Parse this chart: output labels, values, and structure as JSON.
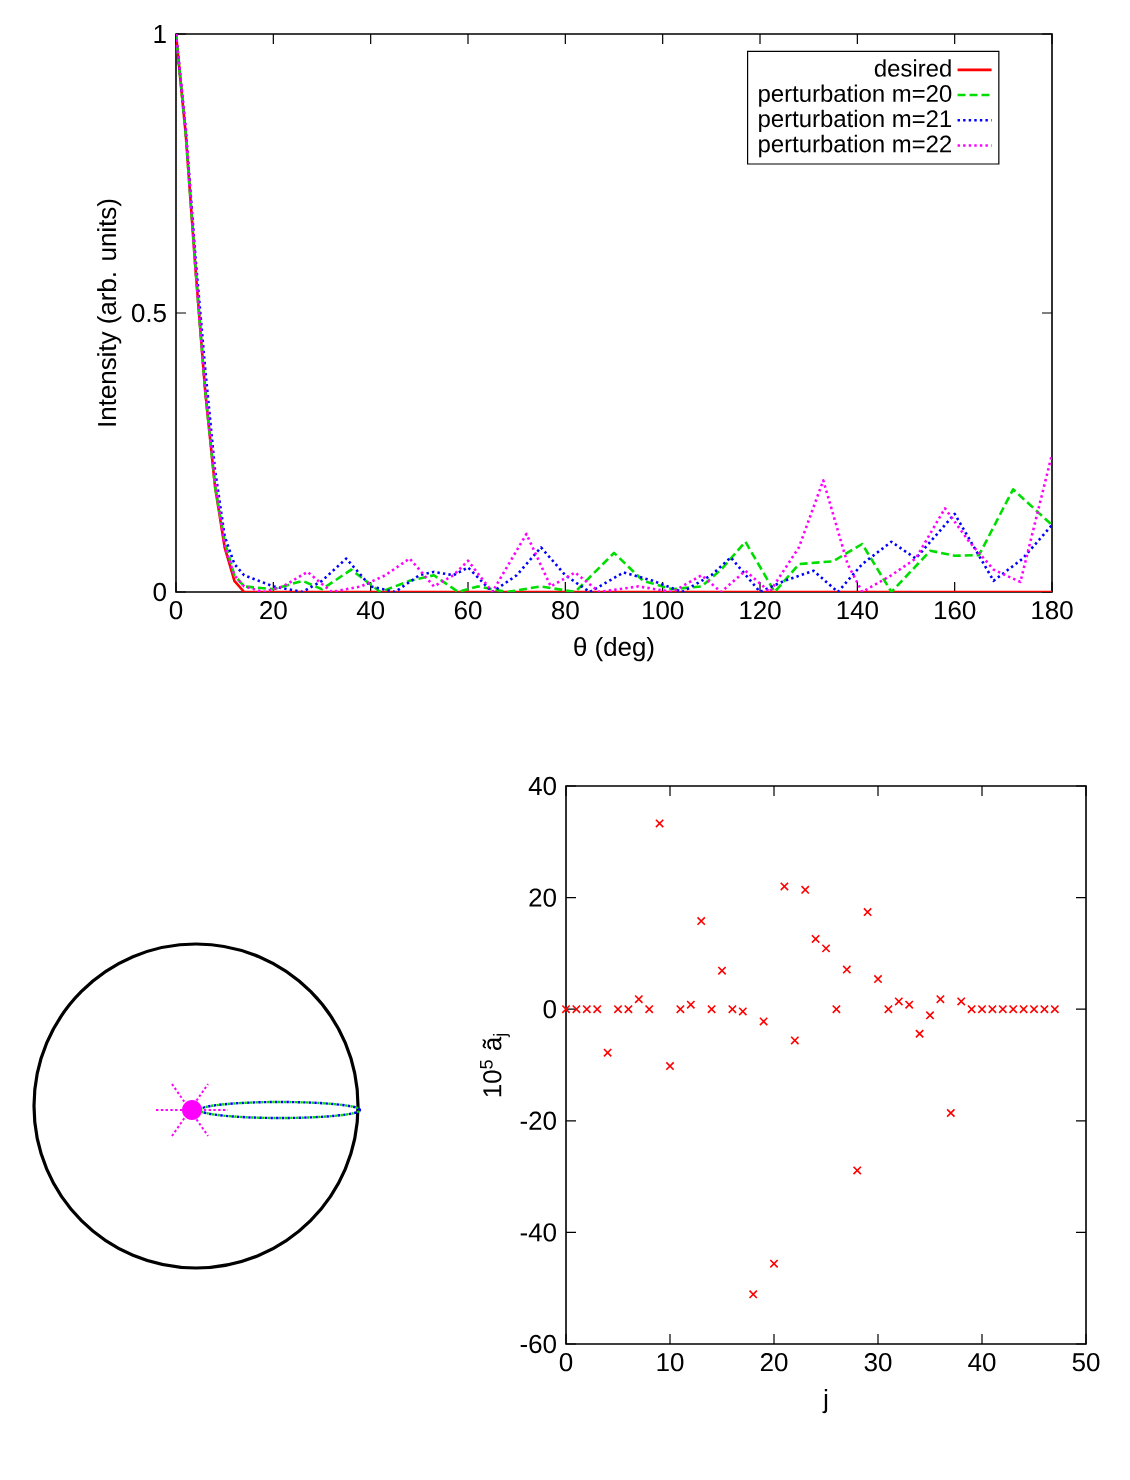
{
  "chart_data": [
    {
      "type": "line",
      "xlabel": "θ (deg)",
      "ylabel": "Intensity (arb. units)",
      "xlim": [
        0,
        180
      ],
      "ylim": [
        0,
        1
      ],
      "xticks": [
        0,
        20,
        40,
        60,
        80,
        100,
        120,
        140,
        160,
        180
      ],
      "yticks": [
        0,
        0.5,
        1
      ],
      "legend": "top right",
      "marker": "none",
      "series": [
        {
          "name": "desired",
          "color": "#ff0000",
          "line_style": "solid",
          "x": [
            0,
            2,
            4,
            6,
            8,
            10,
            12,
            14,
            180
          ],
          "values": [
            1,
            0.82,
            0.58,
            0.36,
            0.19,
            0.08,
            0.02,
            0,
            0
          ]
        },
        {
          "name": "perturbation m=20",
          "color": "#00dd00",
          "line_style": "dashed",
          "x": [
            0,
            2,
            4,
            6,
            8,
            10,
            12,
            14,
            20,
            26,
            30,
            36,
            42,
            48,
            53,
            58,
            62,
            68,
            75,
            82,
            90,
            96,
            102,
            108,
            112,
            117,
            123,
            128,
            135,
            141,
            147,
            155,
            160,
            165,
            172,
            180
          ],
          "values": [
            1,
            0.82,
            0.58,
            0.36,
            0.19,
            0.09,
            0.03,
            0.01,
            0.005,
            0.02,
            0.005,
            0.04,
            0,
            0.02,
            0.03,
            0,
            0.01,
            0,
            0.01,
            0,
            0.07,
            0.02,
            0.005,
            0.01,
            0.04,
            0.09,
            0,
            0.05,
            0.055,
            0.086,
            0,
            0.074,
            0.065,
            0.066,
            0.184,
            0.12
          ]
        },
        {
          "name": "perturbation m=21",
          "color": "#0000ff",
          "line_style": "dotted",
          "x": [
            0,
            2,
            4,
            6,
            8,
            10,
            12,
            14,
            20,
            26,
            30,
            35,
            40,
            45,
            50,
            53,
            57,
            60,
            65,
            70,
            75,
            80,
            85,
            92,
            98,
            104,
            110,
            114,
            120,
            125,
            131,
            136,
            141,
            147,
            152,
            160,
            168,
            174,
            180
          ],
          "values": [
            1,
            0.83,
            0.6,
            0.4,
            0.22,
            0.1,
            0.05,
            0.03,
            0.01,
            0,
            0.02,
            0.06,
            0.01,
            0,
            0.03,
            0.036,
            0.03,
            0.044,
            0,
            0.03,
            0.08,
            0.03,
            0,
            0.035,
            0.02,
            0,
            0.03,
            0.062,
            0,
            0.02,
            0.038,
            0,
            0.05,
            0.09,
            0.06,
            0.14,
            0.02,
            0.06,
            0.12
          ]
        },
        {
          "name": "perturbation m=22",
          "color": "#ff00ff",
          "line_style": "dotted",
          "x": [
            0,
            2,
            4,
            6,
            8,
            10,
            12,
            14,
            18,
            22,
            27,
            32,
            38,
            43,
            48,
            53,
            57,
            60,
            65,
            72,
            77,
            82,
            87,
            95,
            102,
            108,
            112,
            117,
            122,
            128,
            133,
            138,
            141,
            147,
            152,
            158,
            163,
            168,
            173.5,
            180
          ],
          "values": [
            1,
            0.83,
            0.58,
            0.36,
            0.2,
            0.08,
            0.03,
            0.01,
            0,
            0.01,
            0.036,
            0,
            0.01,
            0.03,
            0.06,
            0.01,
            0.03,
            0.056,
            0,
            0.104,
            0.01,
            0.035,
            0,
            0.01,
            0,
            0.03,
            0,
            0.038,
            0,
            0.08,
            0.2,
            0.05,
            0,
            0.03,
            0.06,
            0.15,
            0.09,
            0.04,
            0.018,
            0.247
          ]
        }
      ]
    },
    {
      "type": "scatter",
      "xlabel": "j",
      "ylabel": "10$^{5}$ ã$_{j}$",
      "xlim": [
        0,
        50
      ],
      "ylim": [
        -60,
        40
      ],
      "xticks": [
        0,
        10,
        20,
        30,
        40,
        50
      ],
      "yticks": [
        -60,
        -40,
        -20,
        0,
        20,
        40
      ],
      "marker": "cross",
      "color": "#ff0000",
      "x": [
        0,
        1,
        2,
        3,
        4,
        5,
        6,
        7,
        8,
        9,
        10,
        11,
        12,
        13,
        14,
        15,
        16,
        17,
        18,
        19,
        20,
        21,
        22,
        23,
        24,
        25,
        26,
        27,
        28,
        29,
        30,
        31,
        32,
        33,
        34,
        35,
        36,
        37,
        38,
        39,
        40,
        41,
        42,
        43,
        44,
        45,
        46,
        47
      ],
      "values": [
        0,
        0,
        0,
        0,
        -7.8,
        0,
        0,
        1.8,
        0,
        33.3,
        -10.2,
        0,
        0.8,
        15.8,
        0,
        6.9,
        0,
        -0.4,
        -51.1,
        -2.2,
        -45.6,
        22,
        -5.6,
        21.4,
        12.6,
        10.9,
        0,
        7.1,
        -28.9,
        17.4,
        5.4,
        0,
        1.4,
        0.8,
        -4.4,
        -1.1,
        1.8,
        -18.6,
        1.4,
        0,
        0,
        0,
        0,
        0,
        0,
        0,
        0,
        0
      ]
    }
  ]
}
